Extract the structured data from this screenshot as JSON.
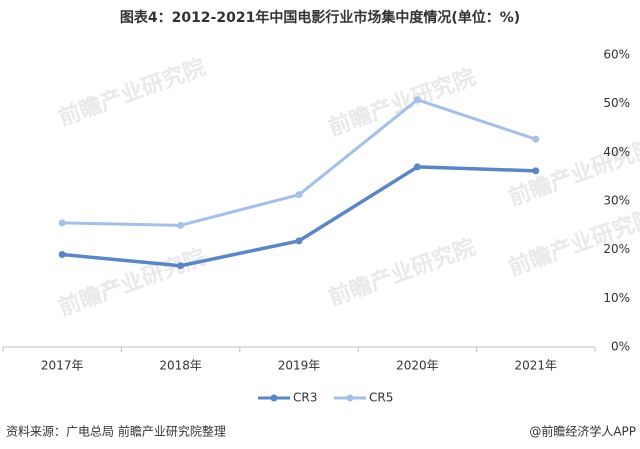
{
  "chart_data": {
    "type": "line",
    "title": "图表4：2012-2021年中国电影行业市场集中度情况(单位：%)",
    "categories": [
      "2017年",
      "2018年",
      "2019年",
      "2020年",
      "2021年"
    ],
    "series": [
      {
        "name": "CR3",
        "color": "#5b86c5",
        "values": [
          19,
          16.7,
          21.8,
          37,
          36.2
        ]
      },
      {
        "name": "CR5",
        "color": "#a4c0e8",
        "values": [
          25.5,
          25,
          31.3,
          50.8,
          42.7
        ]
      }
    ],
    "ylim": [
      0,
      60
    ],
    "yticks": [
      {
        "value": 0,
        "label": "0%"
      },
      {
        "value": 10,
        "label": "10%"
      },
      {
        "value": 20,
        "label": "20%"
      },
      {
        "value": 30,
        "label": "30%"
      },
      {
        "value": 40,
        "label": "40%"
      },
      {
        "value": 50,
        "label": "50%"
      },
      {
        "value": 60,
        "label": "60%"
      }
    ],
    "y_axis_side": "right",
    "grid": false,
    "legend": "bottom",
    "source": "资料来源：广电总局 前瞻产业研究院整理",
    "credit": "@前瞻经济学人APP",
    "watermark": "前瞻产业研究院"
  }
}
